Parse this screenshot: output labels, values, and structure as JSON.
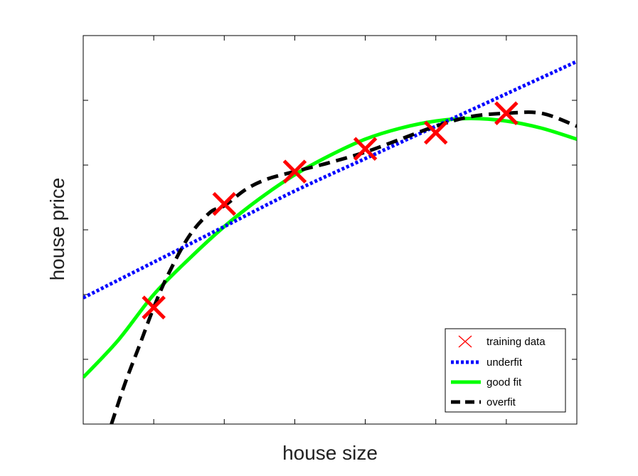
{
  "chart_data": {
    "type": "line",
    "xlabel": "house size",
    "ylabel": "house price",
    "xlim": [
      0,
      7
    ],
    "ylim": [
      0,
      6
    ],
    "xticks": [
      0,
      1,
      2,
      3,
      4,
      5,
      6,
      7
    ],
    "yticks": [
      0,
      1,
      2,
      3,
      4,
      5,
      6
    ],
    "tick_labels_shown": false,
    "grid": false,
    "legend_position": "bottom-right",
    "colors": {
      "training": "#ff0000",
      "underfit": "#0000ff",
      "goodfit": "#00ff00",
      "overfit": "#000000"
    },
    "training_data": {
      "name": "training data",
      "x": [
        1,
        2,
        3,
        4,
        5,
        6
      ],
      "y": [
        1.8,
        3.4,
        3.9,
        4.25,
        4.5,
        4.8
      ]
    },
    "series": [
      {
        "name": "underfit",
        "x": [
          0,
          1,
          2,
          3,
          4,
          5,
          6,
          7
        ],
        "y": [
          1.95,
          2.5,
          3.05,
          3.6,
          4.1,
          4.6,
          5.1,
          5.6
        ]
      },
      {
        "name": "good fit",
        "x": [
          0,
          0.5,
          1,
          1.5,
          2,
          2.5,
          3,
          3.5,
          4,
          4.5,
          5,
          5.5,
          6,
          6.5,
          7
        ],
        "y": [
          0.72,
          1.3,
          2.0,
          2.55,
          3.05,
          3.48,
          3.85,
          4.15,
          4.4,
          4.57,
          4.68,
          4.72,
          4.68,
          4.57,
          4.4
        ]
      },
      {
        "name": "overfit",
        "x": [
          0.4,
          0.6,
          0.8,
          1,
          1.2,
          1.5,
          1.8,
          2,
          2.3,
          2.6,
          3,
          3.5,
          4,
          4.5,
          5,
          5.5,
          6,
          6.5,
          7
        ],
        "y": [
          0.0,
          0.65,
          1.22,
          1.8,
          2.3,
          2.9,
          3.27,
          3.37,
          3.62,
          3.78,
          3.9,
          4.04,
          4.2,
          4.4,
          4.6,
          4.75,
          4.8,
          4.8,
          4.6
        ]
      }
    ]
  }
}
